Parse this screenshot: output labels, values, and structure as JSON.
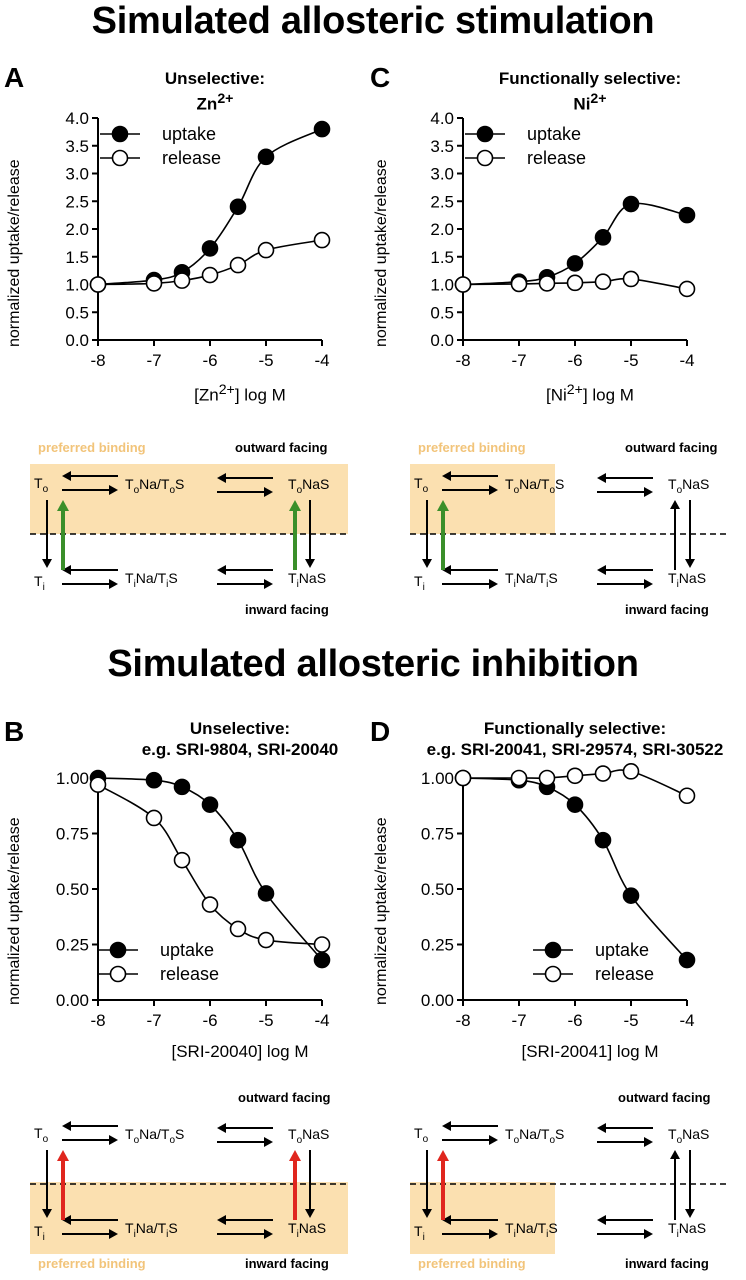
{
  "titles": {
    "stimulation": "Simulated allosteric stimulation",
    "inhibition": "Simulated allosteric inhibition"
  },
  "colors": {
    "highlight": "#fbe0b0",
    "highlight_text": "#f2c47a",
    "green_arrow": "#3a8f2a",
    "red_arrow": "#e0261e"
  },
  "panels": {
    "A": {
      "letter": "A",
      "head1": "Unselective:",
      "head2_base": "Zn",
      "head2_sup": "2+",
      "xlabel_pre": "[Zn",
      "xlabel_sup": "2+",
      "xlabel_post": "] log M"
    },
    "C": {
      "letter": "C",
      "head1": "Functionally selective:",
      "head2_base": "Ni",
      "head2_sup": "2+",
      "xlabel_pre": "[Ni",
      "xlabel_sup": "2+",
      "xlabel_post": "] log M"
    },
    "B": {
      "letter": "B",
      "head1": "Unselective:",
      "head2": "e.g. SRI-9804, SRI-20040",
      "xlabel": "[SRI-20040] log M"
    },
    "D": {
      "letter": "D",
      "head1": "Functionally selective:",
      "head2": "e.g. SRI-20041, SRI-29574, SRI-30522",
      "xlabel": "[SRI-20041] log M"
    }
  },
  "ylabel": "normalized uptake/release",
  "scheme_text": {
    "preferred": "preferred binding",
    "outward": "outward facing",
    "inward": "inward facing",
    "To": "T",
    "To_sub": "o",
    "Ti": "T",
    "Ti_sub": "i",
    "ToNaToS": [
      "T",
      "o",
      "Na/T",
      "o",
      "S"
    ],
    "ToNaS": [
      "T",
      "o",
      "NaS"
    ],
    "TiNaTiS": [
      "T",
      "i",
      "Na/T",
      "i",
      "S"
    ],
    "TiNaS": [
      "T",
      "i",
      "NaS"
    ]
  },
  "chart_data": [
    {
      "panel": "A",
      "type": "line",
      "title": "Unselective: Zn2+",
      "xlabel": "[Zn2+] log M",
      "ylabel": "normalized uptake/release",
      "xlim": [
        -8,
        -4
      ],
      "ylim": [
        0,
        4.0
      ],
      "xticks": [
        -8,
        -7,
        -6,
        -5,
        -4
      ],
      "yticks": [
        "0.0",
        "0.5",
        "1.0",
        "1.5",
        "2.0",
        "2.5",
        "3.0",
        "3.5",
        "4.0"
      ],
      "legend": "top-left",
      "series": [
        {
          "name": "uptake",
          "marker": "filled",
          "x": [
            -8,
            -7,
            -6.5,
            -6,
            -5.5,
            -5,
            -4
          ],
          "y": [
            1.0,
            1.08,
            1.22,
            1.65,
            2.4,
            3.3,
            3.8
          ]
        },
        {
          "name": "release",
          "marker": "open",
          "x": [
            -8,
            -7,
            -6.5,
            -6,
            -5.5,
            -5,
            -4
          ],
          "y": [
            1.0,
            1.02,
            1.07,
            1.17,
            1.35,
            1.62,
            1.8
          ]
        }
      ]
    },
    {
      "panel": "C",
      "type": "line",
      "title": "Functionally selective: Ni2+",
      "xlabel": "[Ni2+] log M",
      "ylabel": "normalized uptake/release",
      "xlim": [
        -8,
        -4
      ],
      "ylim": [
        0,
        4.0
      ],
      "xticks": [
        -8,
        -7,
        -6,
        -5,
        -4
      ],
      "yticks": [
        "0.0",
        "0.5",
        "1.0",
        "1.5",
        "2.0",
        "2.5",
        "3.0",
        "3.5",
        "4.0"
      ],
      "legend": "top-left",
      "series": [
        {
          "name": "uptake",
          "marker": "filled",
          "x": [
            -8,
            -7,
            -6.5,
            -6,
            -5.5,
            -5,
            -4
          ],
          "y": [
            1.0,
            1.05,
            1.13,
            1.38,
            1.85,
            2.45,
            2.25
          ]
        },
        {
          "name": "release",
          "marker": "open",
          "x": [
            -8,
            -7,
            -6.5,
            -6,
            -5.5,
            -5,
            -4
          ],
          "y": [
            1.0,
            1.01,
            1.02,
            1.03,
            1.05,
            1.1,
            0.92
          ]
        }
      ]
    },
    {
      "panel": "B",
      "type": "line",
      "title": "Unselective: e.g. SRI-9804, SRI-20040",
      "xlabel": "[SRI-20040] log M",
      "ylabel": "normalized uptake/release",
      "xlim": [
        -8,
        -4
      ],
      "ylim": [
        0,
        1.0
      ],
      "xticks": [
        -8,
        -7,
        -6,
        -5,
        -4
      ],
      "yticks": [
        "0.00",
        "0.25",
        "0.50",
        "0.75",
        "1.00"
      ],
      "legend": "bottom-left",
      "series": [
        {
          "name": "uptake",
          "marker": "filled",
          "x": [
            -8,
            -7,
            -6.5,
            -6,
            -5.5,
            -5,
            -4
          ],
          "y": [
            1.0,
            0.99,
            0.96,
            0.88,
            0.72,
            0.48,
            0.18
          ]
        },
        {
          "name": "release",
          "marker": "open",
          "x": [
            -8,
            -7,
            -6.5,
            -6,
            -5.5,
            -5,
            -4
          ],
          "y": [
            0.97,
            0.82,
            0.63,
            0.43,
            0.32,
            0.27,
            0.25
          ]
        }
      ]
    },
    {
      "panel": "D",
      "type": "line",
      "title": "Functionally selective: e.g. SRI-20041, SRI-29574, SRI-30522",
      "xlabel": "[SRI-20041] log M",
      "ylabel": "normalized uptake/release",
      "xlim": [
        -8,
        -4
      ],
      "ylim": [
        0,
        1.0
      ],
      "xticks": [
        -8,
        -7,
        -6,
        -5,
        -4
      ],
      "yticks": [
        "0.00",
        "0.25",
        "0.50",
        "0.75",
        "1.00"
      ],
      "legend": "bottom-right",
      "series": [
        {
          "name": "uptake",
          "marker": "filled",
          "x": [
            -8,
            -7,
            -6.5,
            -6,
            -5.5,
            -5,
            -4
          ],
          "y": [
            1.0,
            0.99,
            0.96,
            0.88,
            0.72,
            0.47,
            0.18
          ]
        },
        {
          "name": "release",
          "marker": "open",
          "x": [
            -8,
            -7,
            -6.5,
            -6,
            -5.5,
            -5,
            -4
          ],
          "y": [
            1.0,
            1.0,
            1.0,
            1.01,
            1.02,
            1.03,
            0.92
          ]
        }
      ]
    }
  ]
}
